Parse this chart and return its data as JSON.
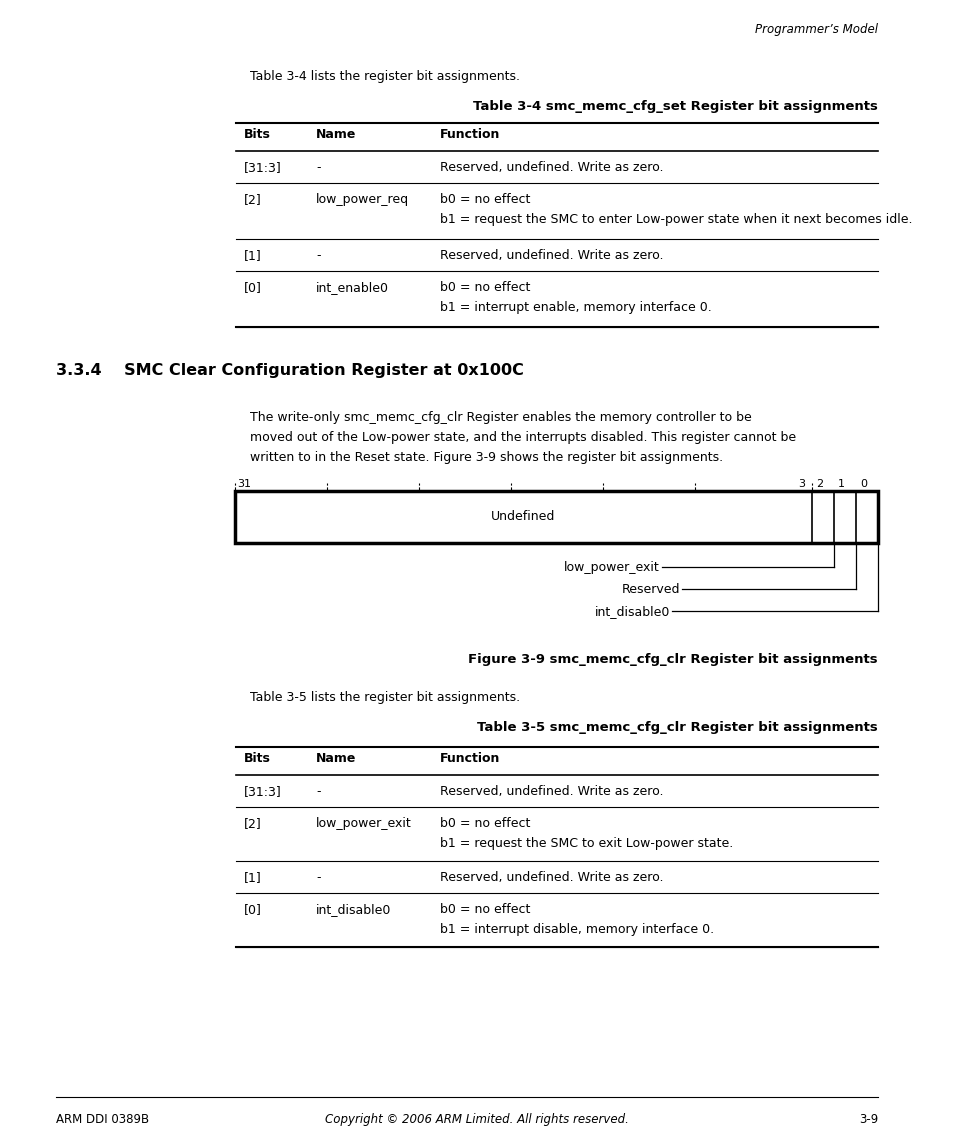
{
  "page_header": "Programmer’s Model",
  "section_heading": "3.3.4    SMC Clear Configuration Register at 0x100C",
  "intro_text_1": "Table 3-4 lists the register bit assignments.",
  "table1_title": "Table 3-4 smc_memc_cfg_set Register bit assignments",
  "table1_headers": [
    "Bits",
    "Name",
    "Function"
  ],
  "table1_rows": [
    [
      "[31:3]",
      "-",
      "Reserved, undefined. Write as zero.",
      ""
    ],
    [
      "[2]",
      "low_power_req",
      "b0 = no effect",
      "b1 = request the SMC to enter Low-power state when it next becomes idle."
    ],
    [
      "[1]",
      "-",
      "Reserved, undefined. Write as zero.",
      ""
    ],
    [
      "[0]",
      "int_enable0",
      "b0 = no effect",
      "b1 = interrupt enable, memory interface 0."
    ]
  ],
  "paragraph_text": "The write-only smc_memc_cfg_clr Register enables the memory controller to be\nmoved out of the Low-power state, and the interrupts disabled. This register cannot be\nwritten to in the Reset state. Figure 3-9 shows the register bit assignments.",
  "figure_caption": "Figure 3-9 smc_memc_cfg_clr Register bit assignments",
  "intro_text_2": "Table 3-5 lists the register bit assignments.",
  "table2_title": "Table 3-5 smc_memc_cfg_clr Register bit assignments",
  "table2_headers": [
    "Bits",
    "Name",
    "Function"
  ],
  "table2_rows": [
    [
      "[31:3]",
      "-",
      "Reserved, undefined. Write as zero.",
      ""
    ],
    [
      "[2]",
      "low_power_exit",
      "b0 = no effect",
      "b1 = request the SMC to exit Low-power state."
    ],
    [
      "[1]",
      "-",
      "Reserved, undefined. Write as zero.",
      ""
    ],
    [
      "[0]",
      "int_disable0",
      "b0 = no effect",
      "b1 = interrupt disable, memory interface 0."
    ]
  ],
  "footer_left": "ARM DDI 0389B",
  "footer_center": "Copyright © 2006 ARM Limited. All rights reserved.",
  "footer_right": "3-9",
  "bg_color": "#ffffff",
  "text_color": "#000000"
}
